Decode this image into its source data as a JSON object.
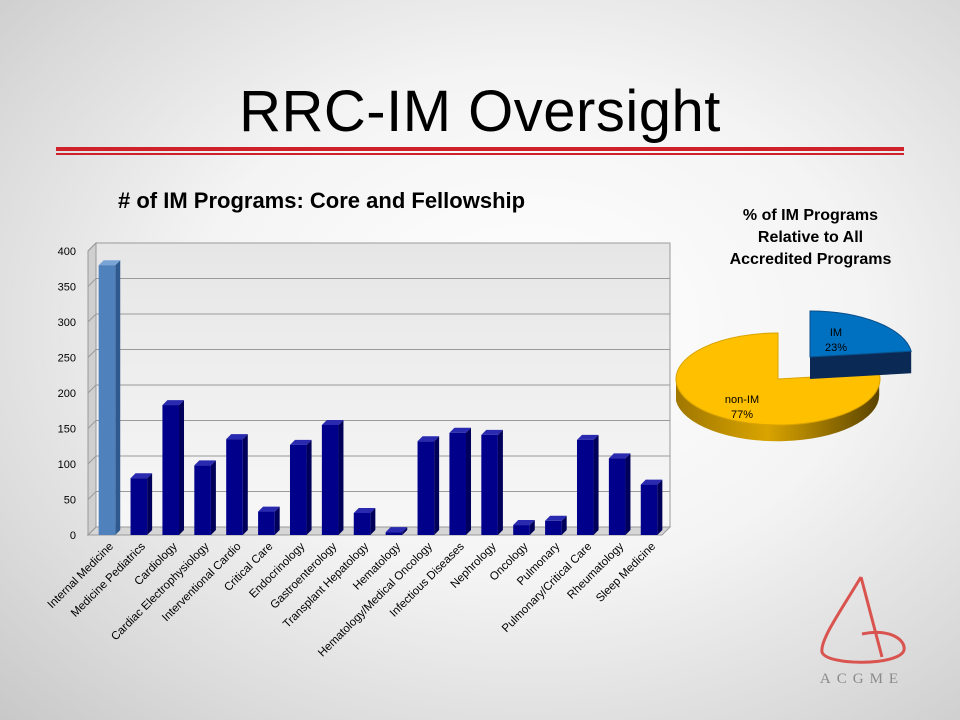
{
  "slide": {
    "title": "RRC-IM Oversight",
    "rule_color": "#d0202a"
  },
  "chart_data": [
    {
      "type": "bar",
      "title": "# of IM Programs: Core and Fellowship",
      "categories": [
        "Internal Medicine",
        "Medicine Pediatrics",
        "Cardiology",
        "Cardiac Electrophysiology",
        "Interventional Cardio",
        "Critical Care",
        "Endocrinology",
        "Gastroenterology",
        "Transplant Hepatology",
        "Hematology",
        "Hematology/Medical Oncology",
        "Infectious Diseases",
        "Nephrology",
        "Oncology",
        "Pulmonary",
        "Pulmonary/Critical Care",
        "Rheumatology",
        "Sleep Medicine"
      ],
      "values": [
        380,
        80,
        183,
        98,
        135,
        33,
        127,
        155,
        31,
        4,
        132,
        144,
        141,
        14,
        20,
        134,
        108,
        71
      ],
      "ylim": [
        0,
        400
      ],
      "yticks": [
        "0",
        "50",
        "100",
        "150",
        "200",
        "250",
        "300",
        "350",
        "400"
      ],
      "grid": true,
      "colors": {
        "first": "#4f81bd",
        "rest": "#00008b"
      }
    },
    {
      "type": "pie",
      "title_lines": [
        "% of IM Programs",
        "Relative to All",
        "Accredited Programs"
      ],
      "slices": [
        {
          "label": "IM",
          "pct_label": "23%",
          "value": 23,
          "color": "#0070c0"
        },
        {
          "label": "non-IM",
          "pct_label": "77%",
          "value": 77,
          "color": "#ffc000"
        }
      ]
    }
  ],
  "logo": {
    "text": "ACGME",
    "color": "#d9534f"
  }
}
